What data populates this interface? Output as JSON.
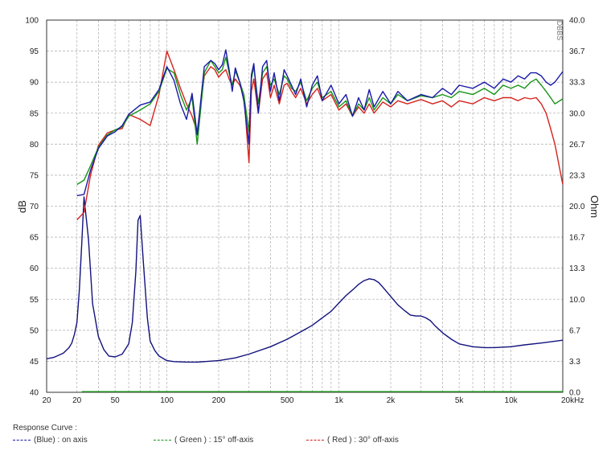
{
  "chart_data": {
    "type": "line",
    "x_scale": "log",
    "xlim": [
      20,
      20000
    ],
    "x_tick_labels": [
      "20",
      "20",
      "50",
      "100",
      "200",
      "500",
      "1k",
      "2k",
      "5k",
      "10k",
      "20kHz"
    ],
    "y_left": {
      "label": "dB",
      "ylim": [
        40,
        100
      ],
      "ticks": [
        100,
        95,
        90,
        85,
        80,
        75,
        70,
        65,
        60,
        55,
        50,
        45,
        40
      ]
    },
    "y_right": {
      "label": "Ohm",
      "ylim": [
        0,
        40
      ],
      "tick_labels": [
        "40.0",
        "36.7",
        "33.3",
        "30.0",
        "26.7",
        "23.3",
        "20.0",
        "16.7",
        "13.3",
        "10.0",
        "6.7",
        "3.3",
        "0.0"
      ]
    },
    "grid": true,
    "watermark": "DBBS",
    "legend_title": "Response Curve :",
    "legend_labels": [
      "(Blue) : on axis",
      "( Green ) : 15° off-axis",
      "( Red ) : 30° off-axis"
    ],
    "series": [
      {
        "name": "(Blue) : on axis",
        "color": "#1a1aa8",
        "axis": "left",
        "x": [
          30,
          33,
          36,
          40,
          45,
          50,
          55,
          60,
          70,
          80,
          90,
          100,
          110,
          120,
          130,
          140,
          150,
          165,
          180,
          190,
          200,
          210,
          220,
          230,
          240,
          250,
          265,
          280,
          300,
          310,
          320,
          340,
          360,
          380,
          400,
          420,
          450,
          480,
          500,
          530,
          560,
          600,
          650,
          700,
          750,
          800,
          900,
          1000,
          1100,
          1200,
          1300,
          1400,
          1500,
          1600,
          1800,
          2000,
          2200,
          2500,
          3000,
          3500,
          4000,
          4500,
          5000,
          6000,
          7000,
          8000,
          9000,
          10000,
          11000,
          12000,
          13000,
          14000,
          15000,
          16000,
          17000,
          18000,
          20000
        ],
        "y": [
          71.7,
          71.9,
          75.8,
          79.3,
          81.3,
          82.0,
          83.0,
          84.8,
          86.3,
          86.8,
          88.8,
          92.5,
          90.3,
          86.5,
          84.0,
          88.2,
          81.5,
          92.5,
          93.5,
          93.0,
          92.0,
          92.8,
          95.2,
          92.0,
          88.5,
          92.3,
          90.0,
          87.0,
          80.0,
          91.2,
          93.0,
          85.0,
          92.5,
          93.5,
          88.5,
          91.5,
          87.0,
          92.0,
          91.0,
          89.5,
          88.0,
          90.5,
          86.0,
          89.5,
          91.0,
          87.0,
          89.5,
          86.5,
          88.0,
          84.5,
          87.5,
          85.5,
          88.8,
          86.0,
          88.5,
          86.5,
          88.5,
          87.0,
          88.0,
          87.5,
          89.0,
          88.0,
          89.5,
          89.0,
          90.0,
          89.0,
          90.5,
          90.0,
          91.0,
          90.5,
          91.5,
          91.5,
          91.0,
          90.0,
          89.5,
          90.0,
          91.7
        ]
      },
      {
        "name": "( Green ) : 15° off-axis",
        "color": "#179417",
        "axis": "left",
        "x": [
          30,
          33,
          36,
          40,
          45,
          50,
          55,
          60,
          70,
          80,
          90,
          100,
          110,
          120,
          130,
          140,
          150,
          165,
          180,
          190,
          200,
          210,
          220,
          230,
          240,
          250,
          265,
          280,
          300,
          310,
          320,
          340,
          360,
          380,
          400,
          420,
          450,
          480,
          500,
          530,
          560,
          600,
          650,
          700,
          750,
          800,
          900,
          1000,
          1100,
          1200,
          1300,
          1400,
          1500,
          1600,
          1800,
          2000,
          2200,
          2500,
          3000,
          3500,
          4000,
          4500,
          5000,
          6000,
          7000,
          8000,
          9000,
          10000,
          11000,
          12000,
          13000,
          14000,
          15000,
          16000,
          17000,
          18000,
          20000
        ],
        "y": [
          73.5,
          74.2,
          76.5,
          79.5,
          81.5,
          82.3,
          82.8,
          84.5,
          85.5,
          86.5,
          88.5,
          92.2,
          91.5,
          88.0,
          85.5,
          87.5,
          80.0,
          91.5,
          93.5,
          92.5,
          91.5,
          92.0,
          94.0,
          91.5,
          89.5,
          91.8,
          90.0,
          88.0,
          82.0,
          90.5,
          92.5,
          86.5,
          91.5,
          92.5,
          89.5,
          90.5,
          88.0,
          91.0,
          90.5,
          89.0,
          88.5,
          90.0,
          87.0,
          89.0,
          90.0,
          87.5,
          88.5,
          86.0,
          87.0,
          84.5,
          86.5,
          85.5,
          87.5,
          85.5,
          87.5,
          86.5,
          88.0,
          87.0,
          87.8,
          87.5,
          88.0,
          87.5,
          88.5,
          88.0,
          89.0,
          88.0,
          89.5,
          89.0,
          89.5,
          89.0,
          90.0,
          90.5,
          89.5,
          88.5,
          87.5,
          86.5,
          87.3
        ]
      },
      {
        "name": "( Red ) : 30° off-axis",
        "color": "#d6221c",
        "axis": "left",
        "x": [
          30,
          33,
          36,
          40,
          45,
          50,
          55,
          60,
          70,
          80,
          90,
          100,
          110,
          120,
          130,
          140,
          150,
          165,
          180,
          190,
          200,
          210,
          220,
          230,
          240,
          250,
          265,
          280,
          300,
          310,
          320,
          340,
          360,
          380,
          400,
          420,
          450,
          480,
          500,
          530,
          560,
          600,
          650,
          700,
          750,
          800,
          900,
          1000,
          1100,
          1200,
          1300,
          1400,
          1500,
          1600,
          1800,
          2000,
          2200,
          2500,
          3000,
          3500,
          4000,
          4500,
          5000,
          6000,
          7000,
          8000,
          9000,
          10000,
          11000,
          12000,
          13000,
          14000,
          15000,
          16000,
          17000,
          18000,
          20000
        ],
        "y": [
          67.8,
          69.0,
          75.0,
          79.8,
          81.8,
          82.3,
          82.5,
          84.8,
          84.0,
          83.0,
          88.0,
          95.0,
          92.0,
          89.0,
          86.5,
          84.5,
          82.0,
          91.0,
          92.5,
          92.0,
          90.8,
          91.5,
          92.0,
          90.5,
          89.5,
          90.5,
          89.5,
          88.0,
          77.0,
          88.5,
          90.5,
          85.0,
          90.5,
          91.5,
          87.5,
          89.5,
          86.5,
          89.5,
          89.8,
          88.5,
          87.5,
          89.0,
          86.5,
          88.0,
          89.0,
          87.0,
          88.0,
          85.5,
          86.5,
          84.5,
          86.0,
          85.0,
          86.5,
          85.0,
          86.8,
          86.0,
          87.0,
          86.5,
          87.2,
          86.5,
          87.0,
          86.0,
          87.0,
          86.5,
          87.5,
          87.0,
          87.5,
          87.5,
          87.0,
          87.5,
          87.3,
          87.5,
          86.5,
          85.0,
          82.5,
          80.0,
          73.5
        ]
      },
      {
        "name": "Impedance",
        "color": "#12127e",
        "axis": "right",
        "x": [
          20,
          22,
          25,
          27,
          28,
          29,
          30,
          31,
          32,
          33,
          35,
          37,
          40,
          43,
          46,
          50,
          55,
          60,
          63,
          66,
          68,
          70,
          73,
          77,
          80,
          85,
          90,
          100,
          110,
          130,
          150,
          200,
          250,
          300,
          400,
          500,
          600,
          700,
          800,
          900,
          1000,
          1100,
          1200,
          1300,
          1400,
          1500,
          1600,
          1700,
          1800,
          2000,
          2200,
          2400,
          2600,
          2800,
          3000,
          3200,
          3400,
          3600,
          4000,
          4500,
          5000,
          6000,
          7000,
          8000,
          10000,
          12000,
          15000,
          20000
        ],
        "y": [
          3.6,
          3.75,
          4.2,
          4.8,
          5.3,
          6.2,
          7.5,
          11.0,
          16.0,
          21.0,
          16.5,
          9.5,
          6.0,
          4.6,
          3.9,
          3.8,
          4.1,
          5.2,
          7.5,
          13.0,
          18.5,
          19.0,
          14.0,
          8.0,
          5.5,
          4.5,
          3.9,
          3.4,
          3.3,
          3.25,
          3.25,
          3.4,
          3.7,
          4.1,
          4.9,
          5.7,
          6.5,
          7.2,
          8.0,
          8.7,
          9.6,
          10.4,
          11.0,
          11.6,
          12.0,
          12.2,
          12.1,
          11.8,
          11.3,
          10.3,
          9.4,
          8.8,
          8.3,
          8.2,
          8.2,
          8.0,
          7.7,
          7.2,
          6.4,
          5.7,
          5.2,
          4.9,
          4.8,
          4.8,
          4.9,
          5.1,
          5.3,
          5.6
        ]
      },
      {
        "name": "Baseline",
        "color": "#179417",
        "axis": "left",
        "x": [
          32,
          20000
        ],
        "y": [
          40.1,
          40.1
        ]
      }
    ]
  }
}
